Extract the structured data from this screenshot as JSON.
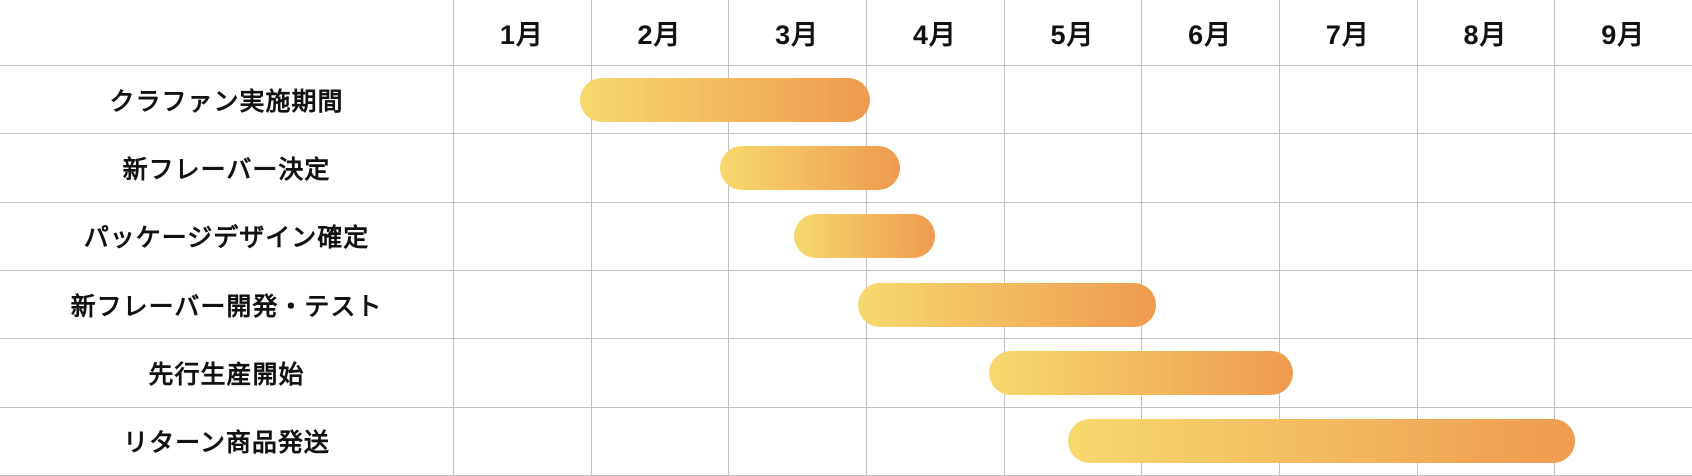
{
  "chart_data": {
    "type": "gantt",
    "title": "",
    "unit": "month",
    "axis_range_months": [
      0,
      9
    ],
    "months": [
      "1月",
      "2月",
      "3月",
      "4月",
      "5月",
      "6月",
      "7月",
      "8月",
      "9月"
    ],
    "tasks": [
      {
        "label": "クラファン実施期間",
        "start_month": 0.92,
        "end_month": 3.03
      },
      {
        "label": "新フレーバー決定",
        "start_month": 1.94,
        "end_month": 3.25
      },
      {
        "label": "パッケージデザイン確定",
        "start_month": 2.48,
        "end_month": 3.5
      },
      {
        "label": "新フレーバー開発・テスト",
        "start_month": 2.94,
        "end_month": 5.11
      },
      {
        "label": "先行生産開始",
        "start_month": 3.89,
        "end_month": 6.1
      },
      {
        "label": "リターン商品発送",
        "start_month": 4.47,
        "end_month": 8.15
      }
    ],
    "layout": {
      "grid": "on",
      "legend": "none",
      "bar_gradient_start": "#F6D96E",
      "bar_gradient_end": "#EF9A50",
      "gridline_color": "#C0C0C0",
      "text_color": "#111111",
      "background_color": "#FFFFFF"
    }
  }
}
